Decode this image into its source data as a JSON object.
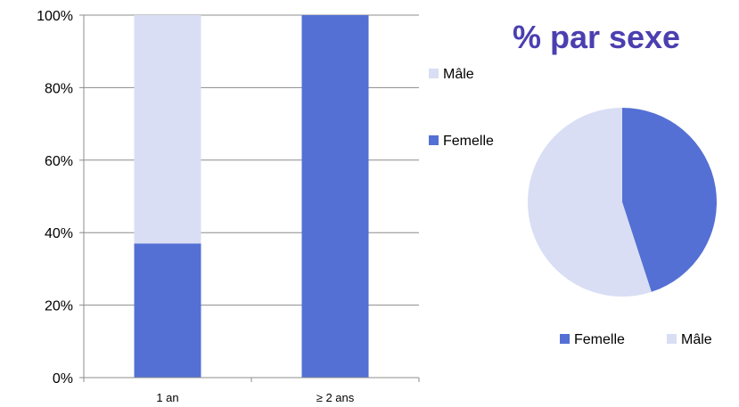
{
  "chart_data": [
    {
      "type": "bar",
      "stacked": true,
      "percent": true,
      "title": "",
      "xlabel": "",
      "ylabel": "",
      "categories": [
        "1 an",
        "≥ 2 ans"
      ],
      "series": [
        {
          "name": "Femelle",
          "values": [
            37,
            100
          ],
          "color": "#5470d4"
        },
        {
          "name": "Mâle",
          "values": [
            63,
            0
          ],
          "color": "#d9def4"
        }
      ],
      "ylim": [
        0,
        100
      ],
      "yticks": [
        "0%",
        "20%",
        "40%",
        "60%",
        "80%",
        "100%"
      ],
      "legend_order": [
        "Mâle",
        "Femelle"
      ],
      "legend_position": "right",
      "grid": true
    },
    {
      "type": "pie",
      "title": "% par sexe",
      "labels": [
        "Femelle",
        "Mâle"
      ],
      "values": [
        45,
        55
      ],
      "colors": [
        "#5470d4",
        "#d9def4"
      ],
      "legend_position": "bottom"
    }
  ]
}
